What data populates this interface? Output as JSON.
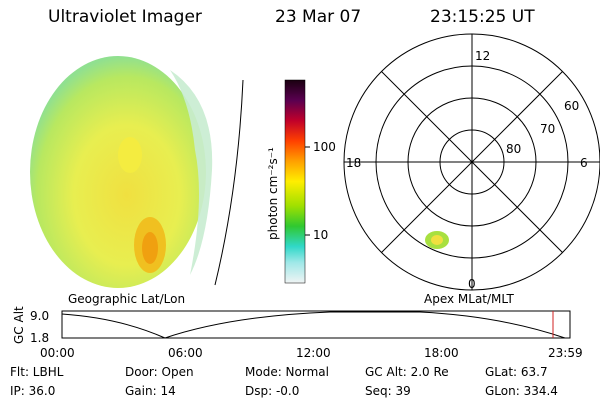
{
  "header": {
    "title": "Ultraviolet Imager",
    "date": "23 Mar 07",
    "time": "23:15:25 UT"
  },
  "image_panel": {
    "caption": "Geographic Lat/Lon"
  },
  "colorbar": {
    "label": "photon cm⁻²s⁻¹",
    "ticks": [
      "100",
      "10"
    ]
  },
  "polar_panel": {
    "caption": "Apex MLat/MLT",
    "mlt_labels": [
      "12",
      "18",
      "6",
      "0"
    ],
    "lat_labels": [
      "60",
      "70",
      "80"
    ]
  },
  "timeline": {
    "ylabel": "GC Alt",
    "yticks": [
      "9.0",
      "1.8"
    ],
    "xticks": [
      "00:00",
      "06:00",
      "12:00",
      "18:00",
      "23:59"
    ]
  },
  "info": {
    "rows": [
      [
        "Flt: LBHL",
        "Door: Open",
        "Mode: Normal",
        "GC Alt: 2.0 Re",
        "GLat: 63.7"
      ],
      [
        "IP: 36.0",
        "Gain: 14",
        "Dsp: -0.0",
        "Seq: 39",
        "GLon: 334.4"
      ]
    ]
  }
}
